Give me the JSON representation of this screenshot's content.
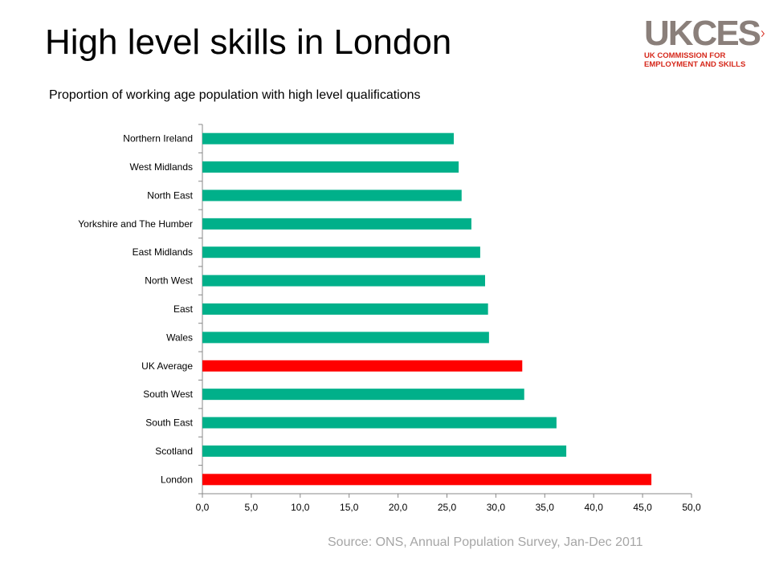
{
  "page": {
    "title": "High level skills in London",
    "subtitle": "Proportion of working age population with high level qualifications",
    "source": "Source: ONS, Annual Population Survey, Jan-Dec  2011"
  },
  "logo": {
    "wordmark": "UKCES",
    "line1": "UK COMMISSION FOR",
    "line2": "EMPLOYMENT AND SKILLS",
    "wordmark_color": "#8a7f7a",
    "accent_color": "#d6281b"
  },
  "chart_data": {
    "type": "bar",
    "orientation": "horizontal",
    "categories": [
      "Northern Ireland",
      "West Midlands",
      "North East",
      "Yorkshire and The Humber",
      "East Midlands",
      "North West",
      "East",
      "Wales",
      "UK Average",
      "South West",
      "South East",
      "Scotland",
      "London"
    ],
    "values": [
      25.7,
      26.2,
      26.5,
      27.5,
      28.4,
      28.9,
      29.2,
      29.3,
      32.7,
      32.9,
      36.2,
      37.2,
      45.9
    ],
    "colors": [
      "#00b08a",
      "#00b08a",
      "#00b08a",
      "#00b08a",
      "#00b08a",
      "#00b08a",
      "#00b08a",
      "#00b08a",
      "#ff0000",
      "#00b08a",
      "#00b08a",
      "#00b08a",
      "#ff0000"
    ],
    "xlim": [
      0,
      50
    ],
    "xticks": [
      0,
      5,
      10,
      15,
      20,
      25,
      30,
      35,
      40,
      45,
      50
    ],
    "xtick_labels": [
      "0,0",
      "5,0",
      "10,0",
      "15,0",
      "20,0",
      "25,0",
      "30,0",
      "35,0",
      "40,0",
      "45,0",
      "50,0"
    ],
    "grid": false,
    "legend": "none",
    "xlabel": "",
    "ylabel": ""
  }
}
